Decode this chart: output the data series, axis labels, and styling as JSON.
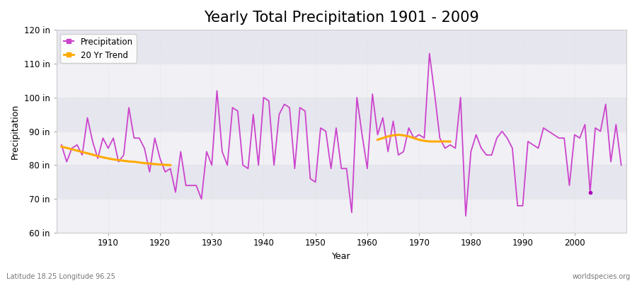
{
  "title": "Yearly Total Precipitation 1901 - 2009",
  "xlabel": "Year",
  "ylabel": "Precipitation",
  "years": [
    1901,
    1902,
    1903,
    1904,
    1905,
    1906,
    1907,
    1908,
    1909,
    1910,
    1911,
    1912,
    1913,
    1914,
    1915,
    1916,
    1917,
    1918,
    1919,
    1920,
    1921,
    1922,
    1923,
    1924,
    1925,
    1926,
    1927,
    1928,
    1929,
    1930,
    1931,
    1932,
    1933,
    1934,
    1935,
    1936,
    1937,
    1938,
    1939,
    1940,
    1941,
    1942,
    1943,
    1944,
    1945,
    1946,
    1947,
    1948,
    1949,
    1950,
    1951,
    1952,
    1953,
    1954,
    1955,
    1956,
    1957,
    1958,
    1959,
    1960,
    1961,
    1962,
    1963,
    1964,
    1965,
    1966,
    1967,
    1968,
    1969,
    1970,
    1971,
    1972,
    1973,
    1974,
    1975,
    1976,
    1977,
    1978,
    1979,
    1980,
    1981,
    1982,
    1983,
    1984,
    1985,
    1986,
    1987,
    1988,
    1989,
    1990,
    1991,
    1992,
    1993,
    1994,
    1995,
    1996,
    1997,
    1998,
    1999,
    2000,
    2001,
    2002,
    2003,
    2004,
    2005,
    2006,
    2007,
    2008,
    2009
  ],
  "precip": [
    86,
    81,
    85,
    86,
    83,
    94,
    87,
    82,
    88,
    85,
    88,
    81,
    83,
    97,
    88,
    88,
    85,
    78,
    88,
    82,
    78,
    79,
    72,
    84,
    74,
    74,
    74,
    70,
    84,
    80,
    102,
    84,
    80,
    97,
    96,
    80,
    79,
    95,
    80,
    100,
    99,
    80,
    95,
    98,
    97,
    79,
    97,
    96,
    76,
    75,
    91,
    90,
    79,
    91,
    79,
    79,
    66,
    100,
    89,
    79,
    101,
    89,
    94,
    84,
    93,
    83,
    84,
    91,
    88,
    89,
    88,
    113,
    101,
    88,
    85,
    86,
    85,
    100,
    65,
    84,
    89,
    85,
    83,
    83,
    88,
    90,
    88,
    85,
    68,
    68,
    87,
    86,
    85,
    91,
    90,
    89,
    88,
    88,
    74,
    89,
    88,
    92,
    72,
    91,
    90,
    98,
    81,
    92,
    80
  ],
  "trend1_years": [
    1901,
    1902,
    1903,
    1904,
    1905,
    1906,
    1907,
    1908,
    1909,
    1910,
    1911,
    1912,
    1913,
    1914,
    1915,
    1916,
    1917,
    1918,
    1919,
    1920,
    1921,
    1922
  ],
  "trend1_values": [
    85.5,
    85.1,
    84.7,
    84.3,
    83.9,
    83.5,
    83.1,
    82.7,
    82.3,
    82.0,
    81.7,
    81.5,
    81.3,
    81.1,
    81.0,
    80.8,
    80.6,
    80.5,
    80.3,
    80.2,
    80.1,
    80.0
  ],
  "trend2_years": [
    1962,
    1963,
    1964,
    1965,
    1966,
    1967,
    1968,
    1969,
    1970,
    1971,
    1972,
    1973,
    1974,
    1975,
    1976
  ],
  "trend2_values": [
    87.5,
    88.0,
    88.5,
    88.8,
    89.0,
    88.8,
    88.5,
    88.0,
    87.5,
    87.2,
    87.0,
    87.0,
    87.0,
    87.0,
    87.0
  ],
  "outlier_year": 2003,
  "outlier_value": 72,
  "line_color": "#cc44cc",
  "trend_color": "#ffaa00",
  "outlier_color": "#aa00bb",
  "plot_bg": "#f0f0f5",
  "fig_bg": "#ffffff",
  "grid_color": "#dddddd",
  "alt_band_color": "#e6e6ee",
  "ylim": [
    60,
    120
  ],
  "yticks": [
    60,
    70,
    80,
    90,
    100,
    110,
    120
  ],
  "xlim": [
    1900,
    2010
  ],
  "xticks": [
    1910,
    1920,
    1930,
    1940,
    1950,
    1960,
    1970,
    1980,
    1990,
    2000
  ],
  "legend_labels": [
    "Precipitation",
    "20 Yr Trend"
  ],
  "bottom_left": "Latitude 18.25 Longitude 96.25",
  "bottom_right": "worldspecies.org",
  "title_fontsize": 15,
  "label_fontsize": 9,
  "tick_fontsize": 8.5,
  "legend_fontsize": 8.5
}
